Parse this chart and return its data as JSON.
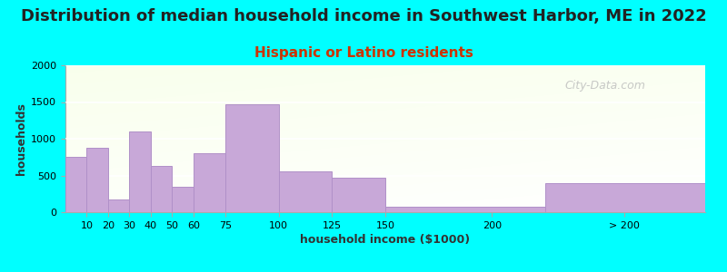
{
  "title": "Distribution of median household income in Southwest Harbor, ME in 2022",
  "subtitle": "Hispanic or Latino residents",
  "xlabel": "household income ($1000)",
  "ylabel": "households",
  "background_color": "#00FFFF",
  "bar_color": "#c8a8d8",
  "bar_edge_color": "#b090c8",
  "watermark": "City-Data.com",
  "title_fontsize": 13,
  "subtitle_fontsize": 11,
  "subtitle_color": "#cc3300",
  "title_color": "#222222",
  "ylim": [
    0,
    2000
  ],
  "yticks": [
    0,
    500,
    1000,
    1500,
    2000
  ],
  "bar_lefts": [
    0,
    10,
    20,
    30,
    40,
    50,
    60,
    75,
    100,
    125,
    150,
    225
  ],
  "bar_widths": [
    10,
    10,
    10,
    10,
    10,
    10,
    15,
    25,
    25,
    25,
    75,
    75
  ],
  "values": [
    750,
    875,
    175,
    1100,
    625,
    350,
    800,
    1475,
    550,
    475,
    75,
    400
  ],
  "xtick_positions": [
    10,
    20,
    30,
    40,
    50,
    60,
    75,
    100,
    125,
    150,
    200,
    262
  ],
  "xtick_labels": [
    "10",
    "20",
    "30",
    "40",
    "50",
    "60",
    "75",
    "100",
    "125",
    "150",
    "200",
    "> 200"
  ],
  "xlim": [
    0,
    300
  ]
}
